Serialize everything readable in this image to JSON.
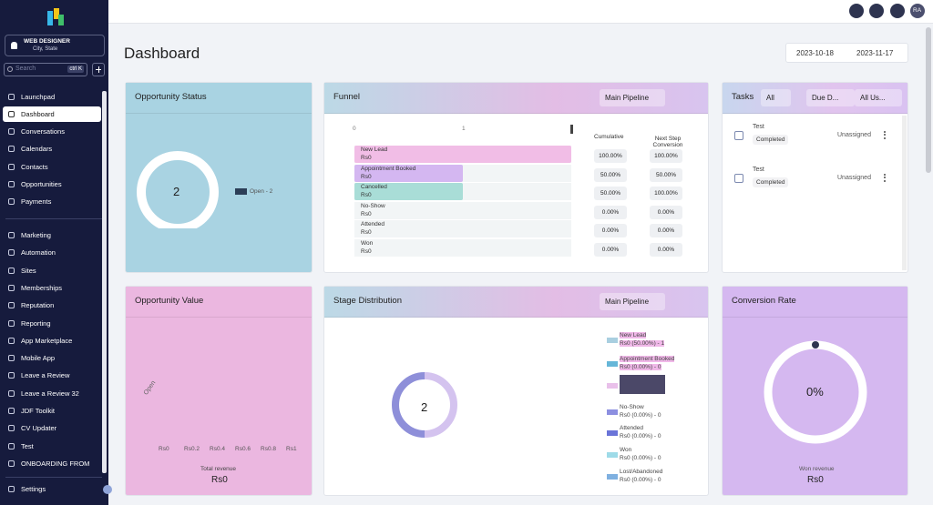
{
  "sidebar": {
    "account": {
      "name": "WEB DESIGNER",
      "location": "City, State"
    },
    "search": {
      "placeholder": "Search",
      "shortcut": "ctrl K"
    },
    "nav": [
      "Launchpad",
      "Dashboard",
      "Conversations",
      "Calendars",
      "Contacts",
      "Opportunities",
      "Payments"
    ],
    "nav2": [
      "Marketing",
      "Automation",
      "Sites",
      "Memberships",
      "Reputation",
      "Reporting",
      "App Marketplace",
      "Mobile App",
      "Leave a Review",
      "Leave a Review 32",
      "JDF Toolkit",
      "CV Updater",
      "Test",
      "ONBOARDING FROM"
    ],
    "settings": "Settings"
  },
  "topbar": {
    "avatar": "RA"
  },
  "page": {
    "title": "Dashboard",
    "date_range": [
      "2023-10-18",
      "2023-11-17"
    ]
  },
  "opportunity_status": {
    "title": "Opportunity Status",
    "total": "2",
    "legend": "Open - 2"
  },
  "funnel": {
    "title": "Funnel",
    "pipeline": "Main Pipeline",
    "axis": [
      "0",
      "1"
    ],
    "columns": [
      "Cumulative",
      "Next Step Conversion"
    ],
    "stages": [
      {
        "name": "New Lead",
        "value": "Rs0",
        "cumulative": "100.00%",
        "next": "100.00%"
      },
      {
        "name": "Appointment Booked",
        "value": "Rs0",
        "cumulative": "50.00%",
        "next": "50.00%"
      },
      {
        "name": "Cancelled",
        "value": "Rs0",
        "cumulative": "50.00%",
        "next": "100.00%"
      },
      {
        "name": "No-Show",
        "value": "Rs0",
        "cumulative": "0.00%",
        "next": "0.00%"
      },
      {
        "name": "Attended",
        "value": "Rs0",
        "cumulative": "0.00%",
        "next": "0.00%"
      },
      {
        "name": "Won",
        "value": "Rs0",
        "cumulative": "0.00%",
        "next": "0.00%"
      }
    ]
  },
  "tasks": {
    "title": "Tasks",
    "filters": [
      "All",
      "Due D...",
      "All Us..."
    ],
    "items": [
      {
        "name": "Test",
        "status": "Completed",
        "assignee": "Unassigned"
      },
      {
        "name": "Test",
        "status": "Completed",
        "assignee": "Unassigned"
      }
    ]
  },
  "opportunity_value": {
    "title": "Opportunity Value",
    "category": "Open",
    "axis": [
      "Rs0",
      "Rs0.2",
      "Rs0.4",
      "Rs0.6",
      "Rs0.8",
      "Rs1"
    ],
    "total_label": "Total revenue",
    "total": "Rs0"
  },
  "stage_distribution": {
    "title": "Stage Distribution",
    "pipeline": "Main Pipeline",
    "total": "2",
    "legend": [
      {
        "name": "New Lead",
        "detail": "Rs0 (50.00%) - 1"
      },
      {
        "name": "Appointment Booked",
        "detail": "Rs0 (0.00%) - 0"
      },
      {
        "name": "No-Show",
        "detail": "Rs0 (0.00%) - 0"
      },
      {
        "name": "Attended",
        "detail": "Rs0 (0.00%) - 0"
      },
      {
        "name": "Won",
        "detail": "Rs0 (0.00%) - 0"
      },
      {
        "name": "Lost/Abandoned",
        "detail": "Rs0 (0.00%) - 0"
      }
    ]
  },
  "conversion_rate": {
    "title": "Conversion Rate",
    "value": "0%",
    "label": "Won revenue",
    "total": "Rs0"
  }
}
